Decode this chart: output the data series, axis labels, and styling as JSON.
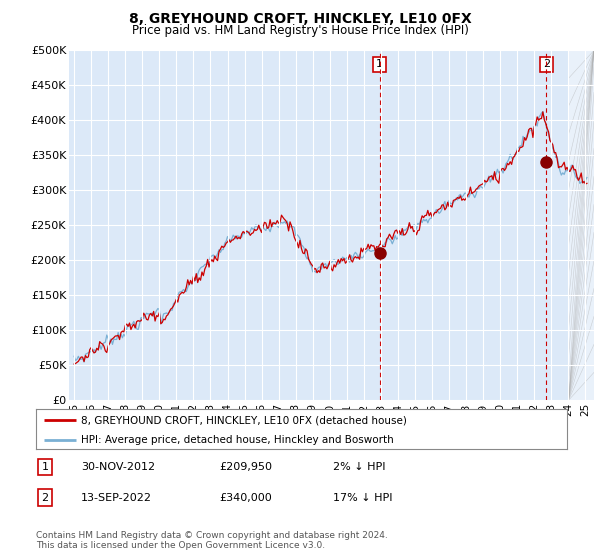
{
  "title": "8, GREYHOUND CROFT, HINCKLEY, LE10 0FX",
  "subtitle": "Price paid vs. HM Land Registry's House Price Index (HPI)",
  "ylim": [
    0,
    500000
  ],
  "yticks": [
    0,
    50000,
    100000,
    150000,
    200000,
    250000,
    300000,
    350000,
    400000,
    450000,
    500000
  ],
  "ytick_labels": [
    "£0",
    "£50K",
    "£100K",
    "£150K",
    "£200K",
    "£250K",
    "£300K",
    "£350K",
    "£400K",
    "£450K",
    "£500K"
  ],
  "background_color": "#dce9f8",
  "line_color_red": "#cc0000",
  "line_color_blue": "#7ab0d4",
  "grid_color": "#ffffff",
  "sale1_date_x": 2012.917,
  "sale1_y": 209950,
  "sale2_date_x": 2022.708,
  "sale2_y": 340000,
  "legend_entry1": "8, GREYHOUND CROFT, HINCKLEY, LE10 0FX (detached house)",
  "legend_entry2": "HPI: Average price, detached house, Hinckley and Bosworth",
  "table_row1": [
    "1",
    "30-NOV-2012",
    "£209,950",
    "2% ↓ HPI"
  ],
  "table_row2": [
    "2",
    "13-SEP-2022",
    "£340,000",
    "17% ↓ HPI"
  ],
  "footnote": "Contains HM Land Registry data © Crown copyright and database right 2024.\nThis data is licensed under the Open Government Licence v3.0.",
  "xlim_start": 1994.7,
  "xlim_end": 2025.5,
  "xticks": [
    1995,
    1996,
    1997,
    1998,
    1999,
    2000,
    2001,
    2002,
    2003,
    2004,
    2005,
    2006,
    2007,
    2008,
    2009,
    2010,
    2011,
    2012,
    2013,
    2014,
    2015,
    2016,
    2017,
    2018,
    2019,
    2020,
    2021,
    2022,
    2023,
    2024,
    2025
  ],
  "xtick_labels": [
    "95",
    "96",
    "97",
    "98",
    "99",
    "00",
    "01",
    "02",
    "03",
    "04",
    "05",
    "06",
    "07",
    "08",
    "09",
    "10",
    "11",
    "12",
    "13",
    "14",
    "15",
    "16",
    "17",
    "18",
    "19",
    "20",
    "21",
    "22",
    "23",
    "24",
    "25"
  ]
}
